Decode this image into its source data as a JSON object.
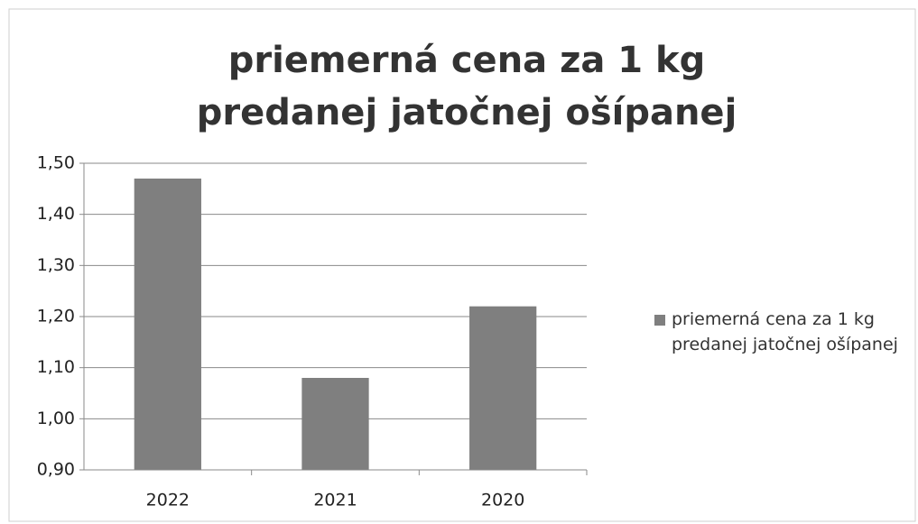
{
  "chart_data": {
    "type": "bar",
    "title": "priemerná cena za 1 kg predanej jatočnej ošípanej",
    "categories": [
      "2022",
      "2021",
      "2020"
    ],
    "series": [
      {
        "name": "priemerná cena za 1 kg predanej jatočnej ošípanej",
        "color": "#7f7f7f",
        "values": [
          1.47,
          1.08,
          1.22
        ]
      }
    ],
    "ylim": [
      0.9,
      1.5
    ],
    "yticks": [
      {
        "value": 0.9,
        "label": "0,90"
      },
      {
        "value": 1.0,
        "label": "1,00"
      },
      {
        "value": 1.1,
        "label": "1,10"
      },
      {
        "value": 1.2,
        "label": "1,20"
      },
      {
        "value": 1.3,
        "label": "1,30"
      },
      {
        "value": 1.4,
        "label": "1,40"
      },
      {
        "value": 1.5,
        "label": "1,50"
      }
    ],
    "grid": true,
    "legend": "right"
  }
}
